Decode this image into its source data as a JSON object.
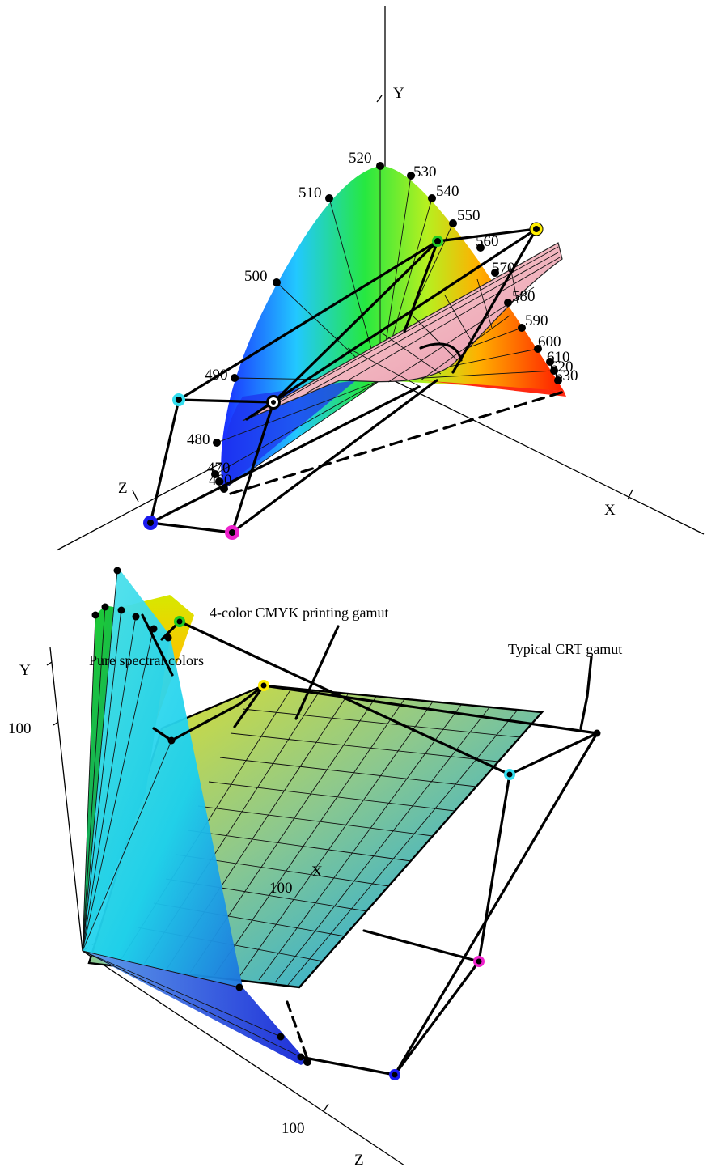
{
  "top_view": {
    "axes": {
      "x": "X",
      "y": "Y",
      "z": "Z"
    },
    "wavelength_labels": [
      "460",
      "470",
      "480",
      "490",
      "500",
      "510",
      "520",
      "530",
      "540",
      "550",
      "560",
      "570",
      "580",
      "590",
      "600",
      "610",
      "620",
      "630"
    ]
  },
  "bottom_view": {
    "axes": {
      "x": "X",
      "y": "Y",
      "z": "Z"
    },
    "tick_labels": {
      "y": "100",
      "x": "100",
      "z": "100"
    },
    "annotations": {
      "cmyk": "4-color CMYK printing gamut",
      "spectral": "Pure spectral colors",
      "crt": "Typical CRT gamut"
    }
  },
  "colors": {
    "yellow": "#ffee00",
    "green": "#22cc22",
    "cyan": "#33ddee",
    "blue": "#1a1aee",
    "magenta": "#ee22cc",
    "white": "#ffffff"
  }
}
